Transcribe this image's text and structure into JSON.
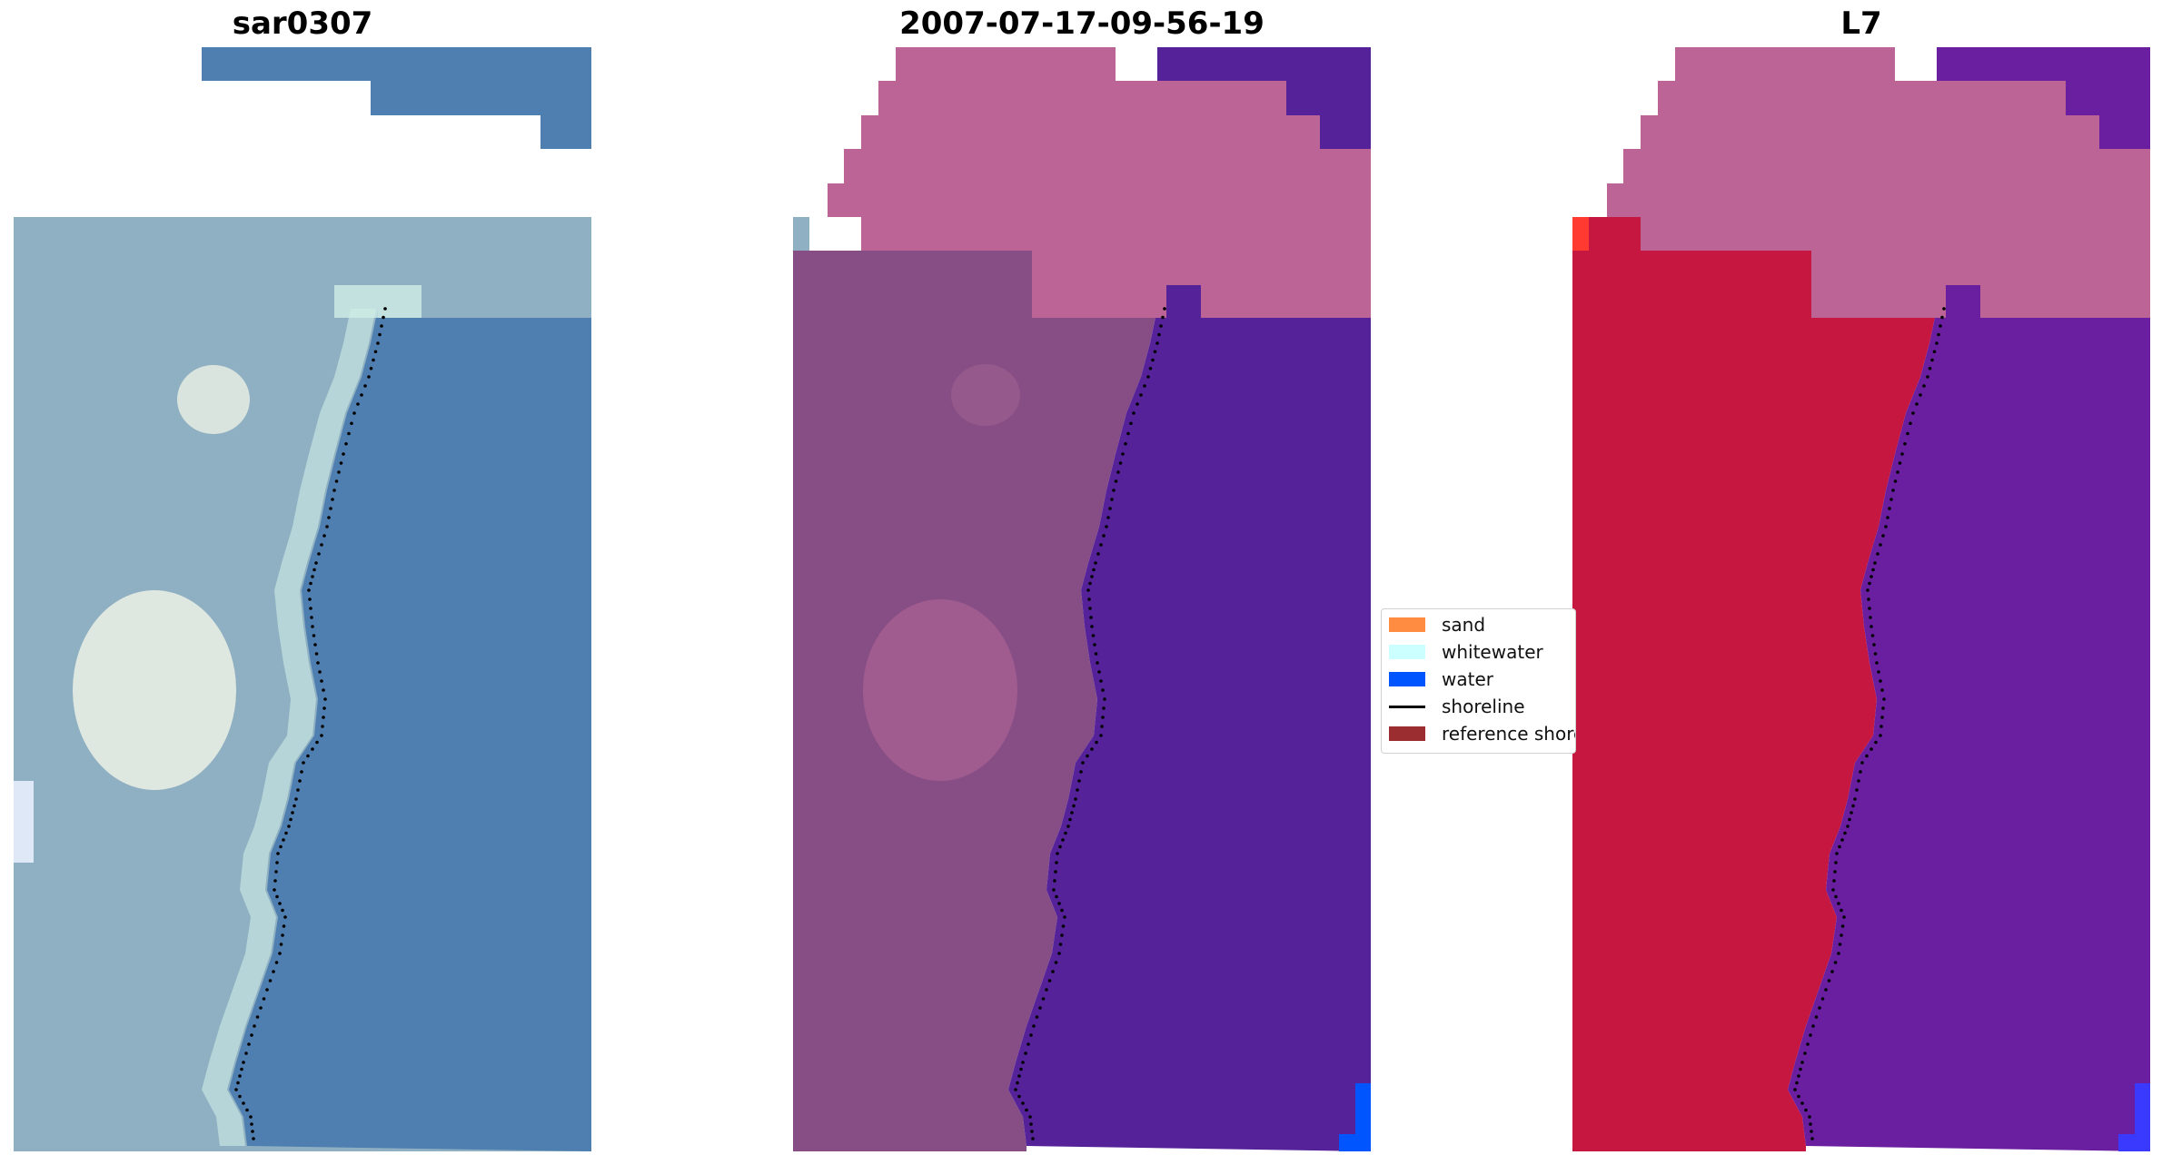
{
  "panels": [
    {
      "title": "sar0307",
      "kind": "rgb"
    },
    {
      "title": "2007-07-17-09-56-19",
      "kind": "classified"
    },
    {
      "title": "L7",
      "kind": "falsecolor"
    }
  ],
  "legend": {
    "items": [
      {
        "label": "sand",
        "color": "#ff8c40",
        "type": "patch"
      },
      {
        "label": "whitewater",
        "color": "#ccffff",
        "type": "patch"
      },
      {
        "label": "water",
        "color": "#0055ff",
        "type": "patch"
      },
      {
        "label": "shoreline",
        "color": "#000000",
        "type": "line"
      },
      {
        "label": "reference shoreline",
        "color": "#9b2d30",
        "type": "patch"
      }
    ]
  },
  "colors": {
    "rgb_water": "#4f7fb0",
    "rgb_land": "#8fb0c2",
    "rgb_bright": "#f2f5e8",
    "rgb_whitewater": "#cfeee6",
    "class_water": "#55229a",
    "class_land": "#874e86",
    "class_sand_overlay": "#bc6496",
    "false_water": "#6a1ea0",
    "false_land": "#c5173f",
    "false_sand_overlay": "#bc6496",
    "shoreline": "#000000"
  }
}
